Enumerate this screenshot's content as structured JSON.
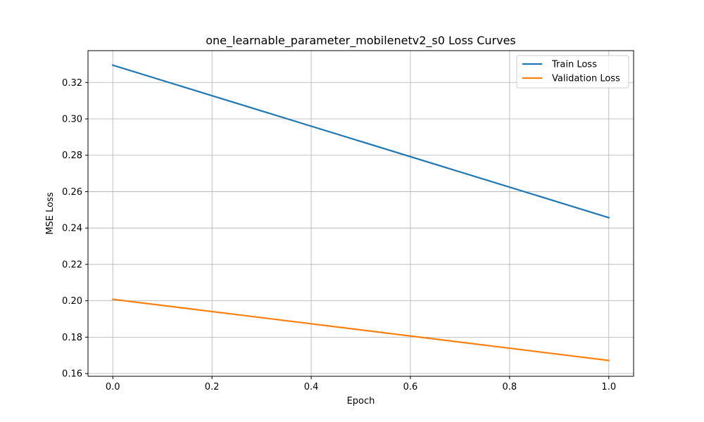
{
  "chart_data": {
    "type": "line",
    "title": "one_learnable_parameter_mobilenetv2_s0 Loss Curves",
    "xlabel": "Epoch",
    "ylabel": "MSE Loss",
    "xlim": [
      -0.05,
      1.05
    ],
    "ylim": [
      0.1585,
      0.3375
    ],
    "xticks": [
      0.0,
      0.2,
      0.4,
      0.6,
      0.8,
      1.0
    ],
    "xtick_labels": [
      "0.0",
      "0.2",
      "0.4",
      "0.6",
      "0.8",
      "1.0"
    ],
    "yticks": [
      0.16,
      0.18,
      0.2,
      0.22,
      0.24,
      0.26,
      0.28,
      0.3,
      0.32
    ],
    "ytick_labels": [
      "0.16",
      "0.18",
      "0.20",
      "0.22",
      "0.24",
      "0.26",
      "0.28",
      "0.30",
      "0.32"
    ],
    "grid": true,
    "legend_position": "top-right",
    "x": [
      0,
      1
    ],
    "series": [
      {
        "name": "Train Loss",
        "values": [
          0.3295,
          0.2457
        ],
        "color": "#1f77b4"
      },
      {
        "name": "Validation Loss",
        "values": [
          0.2008,
          0.1672
        ],
        "color": "#ff7f0e"
      }
    ]
  }
}
